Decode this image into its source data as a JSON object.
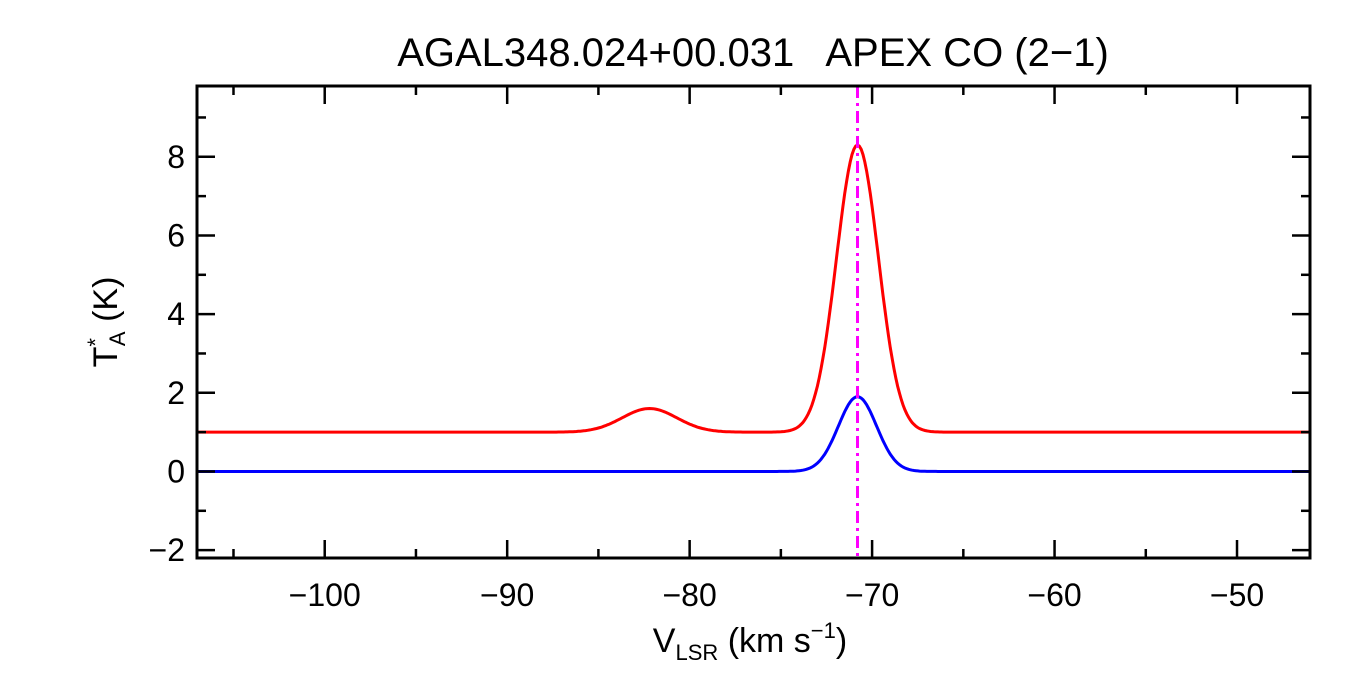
{
  "chart_data": {
    "type": "line",
    "title": "AGAL348.024+00.031   APEX CO (2−1)",
    "xlabel": {
      "main": "V",
      "sub": "LSR",
      "rest": " (km s",
      "sup": "−1",
      "end": ")"
    },
    "ylabel": {
      "main": "T",
      "sup": "*",
      "sub": "A",
      "rest": " (K)"
    },
    "xlim": [
      -107,
      -46
    ],
    "ylim": [
      -2.2,
      9.8
    ],
    "x_ticks": [
      -100,
      -90,
      -80,
      -70,
      -60,
      -50
    ],
    "x_tick_labels": [
      "−100",
      "−90",
      "−80",
      "−70",
      "−60",
      "−50"
    ],
    "y_ticks": [
      -2,
      0,
      2,
      4,
      6,
      8
    ],
    "y_tick_labels": [
      "−2",
      "0",
      "2",
      "4",
      "6",
      "8"
    ],
    "grid": false,
    "vline": {
      "x": -70.8,
      "color": "#ff00ff",
      "style": "dash-dot"
    },
    "series": [
      {
        "kind": "observed-spectrum",
        "color": "#000000",
        "x": [
          -107,
          -105,
          -103,
          -101,
          -99,
          -97,
          -95,
          -93,
          -91,
          -89,
          -87,
          -85,
          -84,
          -83,
          -82,
          -81,
          -80,
          -79,
          -78,
          -77,
          -76,
          -75,
          -74,
          -73.5,
          -73,
          -72.5,
          -72,
          -71.5,
          -71,
          -70.5,
          -70,
          -69.5,
          -69,
          -68.5,
          -68,
          -67.5,
          -67,
          -66,
          -65,
          -64,
          -62,
          -60,
          -58,
          -56,
          -54,
          -52,
          -50,
          -48,
          -46
        ],
        "y": [
          1.05,
          1.0,
          1.05,
          1.0,
          1.0,
          1.05,
          1.0,
          1.05,
          1.0,
          1.05,
          1.05,
          1.2,
          1.4,
          1.65,
          1.75,
          1.5,
          1.2,
          1.05,
          1.2,
          1.35,
          1.45,
          1.7,
          2.2,
          2.7,
          3.5,
          4.6,
          5.8,
          7.0,
          8.1,
          8.2,
          7.2,
          5.8,
          4.4,
          3.3,
          2.5,
          1.9,
          1.6,
          1.3,
          1.2,
          1.1,
          1.05,
          1.05,
          1.0,
          1.1,
          1.0,
          1.05,
          1.0,
          1.0,
          1.0
        ]
      },
      {
        "kind": "residual-spectrum",
        "color": "#777777",
        "x": [
          -107,
          -105,
          -103,
          -101,
          -99,
          -97,
          -95,
          -93,
          -91,
          -89,
          -87,
          -85,
          -83,
          -81,
          -79,
          -77,
          -75,
          -74,
          -73,
          -72.5,
          -72,
          -71.5,
          -71,
          -70.5,
          -70,
          -69.5,
          -69,
          -68.5,
          -68,
          -67,
          -65,
          -63,
          -61,
          -59,
          -57,
          -55,
          -53,
          -51,
          -49,
          -47,
          -46
        ],
        "y": [
          -0.1,
          0.05,
          -0.1,
          0.05,
          -0.1,
          0.0,
          -0.1,
          0.05,
          -0.1,
          0.0,
          0.05,
          -0.05,
          0.1,
          -0.05,
          0.05,
          -0.05,
          0.0,
          0.1,
          0.3,
          0.6,
          1.0,
          1.5,
          1.9,
          2.05,
          1.8,
          1.3,
          0.7,
          0.35,
          0.15,
          0.0,
          0.1,
          -0.05,
          0.05,
          -0.1,
          0.05,
          -0.1,
          0.1,
          -0.05,
          0.0,
          -0.05,
          0.0
        ]
      },
      {
        "kind": "gaussian-fit",
        "color": "#ff0000",
        "baseline": 1.0,
        "components": [
          {
            "amplitude": 7.3,
            "center": -70.8,
            "sigma": 1.15
          },
          {
            "amplitude": 0.6,
            "center": -82.2,
            "sigma": 1.5
          }
        ]
      },
      {
        "kind": "gaussian-fit",
        "color": "#0000ff",
        "baseline": 0.0,
        "components": [
          {
            "amplitude": 1.9,
            "center": -70.8,
            "sigma": 1.05
          }
        ]
      }
    ]
  }
}
